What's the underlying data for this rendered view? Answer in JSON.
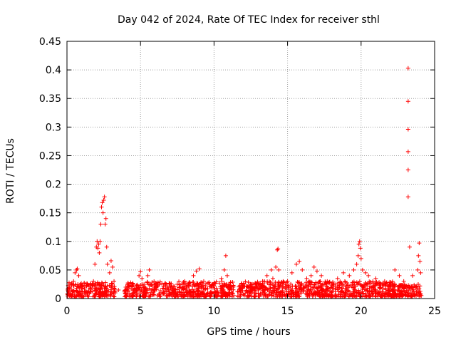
{
  "chart_data": {
    "type": "scatter",
    "title": "Day 042 of 2024, Rate Of TEC Index for receiver sthl",
    "xlabel": "GPS time / hours",
    "ylabel": "ROTI / TECUs",
    "xlim": [
      0,
      25
    ],
    "ylim": [
      0,
      0.45
    ],
    "xticks": [
      0,
      5,
      10,
      15,
      20,
      25
    ],
    "yticks": [
      0,
      0.05,
      0.1,
      0.15,
      0.2,
      0.25,
      0.3,
      0.35,
      0.4,
      0.45
    ],
    "xtick_labels": [
      "0",
      "5",
      "10",
      "15",
      "20",
      "25"
    ],
    "ytick_labels": [
      "0",
      "0.05",
      "0.1",
      "0.15",
      "0.2",
      "0.25",
      "0.3",
      "0.35",
      "0.4",
      "0.45"
    ],
    "grid": true,
    "marker": "plus",
    "series": [
      {
        "color": "#ff0000",
        "points": [
          [
            0.1,
            0.012
          ],
          [
            0.2,
            0.02
          ],
          [
            0.3,
            0.015
          ],
          [
            0.45,
            0.03
          ],
          [
            0.55,
            0.045
          ],
          [
            0.65,
            0.05
          ],
          [
            0.7,
            0.052
          ],
          [
            0.8,
            0.04
          ],
          [
            0.9,
            0.025
          ],
          [
            1.0,
            0.018
          ],
          [
            1.2,
            0.02
          ],
          [
            1.4,
            0.025
          ],
          [
            1.6,
            0.022
          ],
          [
            1.8,
            0.03
          ],
          [
            1.9,
            0.06
          ],
          [
            2.0,
            0.09
          ],
          [
            2.05,
            0.1
          ],
          [
            2.1,
            0.088
          ],
          [
            2.15,
            0.095
          ],
          [
            2.2,
            0.08
          ],
          [
            2.25,
            0.1
          ],
          [
            2.3,
            0.13
          ],
          [
            2.35,
            0.16
          ],
          [
            2.4,
            0.168
          ],
          [
            2.45,
            0.15
          ],
          [
            2.5,
            0.172
          ],
          [
            2.55,
            0.178
          ],
          [
            2.6,
            0.13
          ],
          [
            2.65,
            0.14
          ],
          [
            2.7,
            0.09
          ],
          [
            2.75,
            0.06
          ],
          [
            2.9,
            0.045
          ],
          [
            3.0,
            0.066
          ],
          [
            3.1,
            0.055
          ],
          [
            3.2,
            0.03
          ],
          [
            3.5,
            0.015
          ],
          [
            4.0,
            0.02
          ],
          [
            4.5,
            0.025
          ],
          [
            4.9,
            0.04
          ],
          [
            5.0,
            0.047
          ],
          [
            5.1,
            0.035
          ],
          [
            5.3,
            0.02
          ],
          [
            5.5,
            0.04
          ],
          [
            5.6,
            0.05
          ],
          [
            6.0,
            0.02
          ],
          [
            6.5,
            0.018
          ],
          [
            7.0,
            0.022
          ],
          [
            7.5,
            0.025
          ],
          [
            8.0,
            0.03
          ],
          [
            8.3,
            0.025
          ],
          [
            8.6,
            0.04
          ],
          [
            8.8,
            0.048
          ],
          [
            9.0,
            0.052
          ],
          [
            9.3,
            0.03
          ],
          [
            9.7,
            0.025
          ],
          [
            10.0,
            0.022
          ],
          [
            10.5,
            0.035
          ],
          [
            10.7,
            0.05
          ],
          [
            10.8,
            0.075
          ],
          [
            10.9,
            0.04
          ],
          [
            11.0,
            0.025
          ],
          [
            11.3,
            0.02
          ],
          [
            11.8,
            0.018
          ],
          [
            12.2,
            0.022
          ],
          [
            12.6,
            0.02
          ],
          [
            13.0,
            0.025
          ],
          [
            13.3,
            0.03
          ],
          [
            13.6,
            0.04
          ],
          [
            13.9,
            0.05
          ],
          [
            14.0,
            0.035
          ],
          [
            14.2,
            0.055
          ],
          [
            14.3,
            0.085
          ],
          [
            14.35,
            0.087
          ],
          [
            14.4,
            0.05
          ],
          [
            14.7,
            0.03
          ],
          [
            15.0,
            0.03
          ],
          [
            15.3,
            0.045
          ],
          [
            15.6,
            0.06
          ],
          [
            15.8,
            0.065
          ],
          [
            16.0,
            0.05
          ],
          [
            16.3,
            0.035
          ],
          [
            16.6,
            0.04
          ],
          [
            16.8,
            0.055
          ],
          [
            17.0,
            0.048
          ],
          [
            17.3,
            0.04
          ],
          [
            17.7,
            0.03
          ],
          [
            18.0,
            0.025
          ],
          [
            18.4,
            0.035
          ],
          [
            18.8,
            0.045
          ],
          [
            19.2,
            0.04
          ],
          [
            19.5,
            0.05
          ],
          [
            19.7,
            0.06
          ],
          [
            19.8,
            0.075
          ],
          [
            19.85,
            0.095
          ],
          [
            19.9,
            0.1
          ],
          [
            19.95,
            0.088
          ],
          [
            20.0,
            0.07
          ],
          [
            20.1,
            0.05
          ],
          [
            20.3,
            0.045
          ],
          [
            20.5,
            0.04
          ],
          [
            20.8,
            0.03
          ],
          [
            21.0,
            0.035
          ],
          [
            21.3,
            0.025
          ],
          [
            21.6,
            0.03
          ],
          [
            22.0,
            0.02
          ],
          [
            22.3,
            0.05
          ],
          [
            22.6,
            0.04
          ],
          [
            22.9,
            0.03
          ],
          [
            23.2,
            0.178
          ],
          [
            23.2,
            0.225
          ],
          [
            23.2,
            0.257
          ],
          [
            23.2,
            0.296
          ],
          [
            23.2,
            0.345
          ],
          [
            23.2,
            0.403
          ],
          [
            23.3,
            0.09
          ],
          [
            23.5,
            0.04
          ],
          [
            23.7,
            0.02
          ],
          [
            23.85,
            0.05
          ],
          [
            23.9,
            0.075
          ],
          [
            23.95,
            0.097
          ],
          [
            24.0,
            0.065
          ],
          [
            24.05,
            0.045
          ]
        ],
        "baseline_band": {
          "note_range_min": 0.003,
          "segments": [
            {
              "x": [
                0.0,
                3.3
              ],
              "y_max": 0.028
            },
            {
              "x": [
                3.9,
                11.35
              ],
              "y_max": 0.03
            },
            {
              "x": [
                11.6,
                22.5
              ],
              "y_max": 0.03
            },
            {
              "x": [
                22.5,
                24.1
              ],
              "y_max": 0.025
            }
          ]
        }
      }
    ]
  }
}
